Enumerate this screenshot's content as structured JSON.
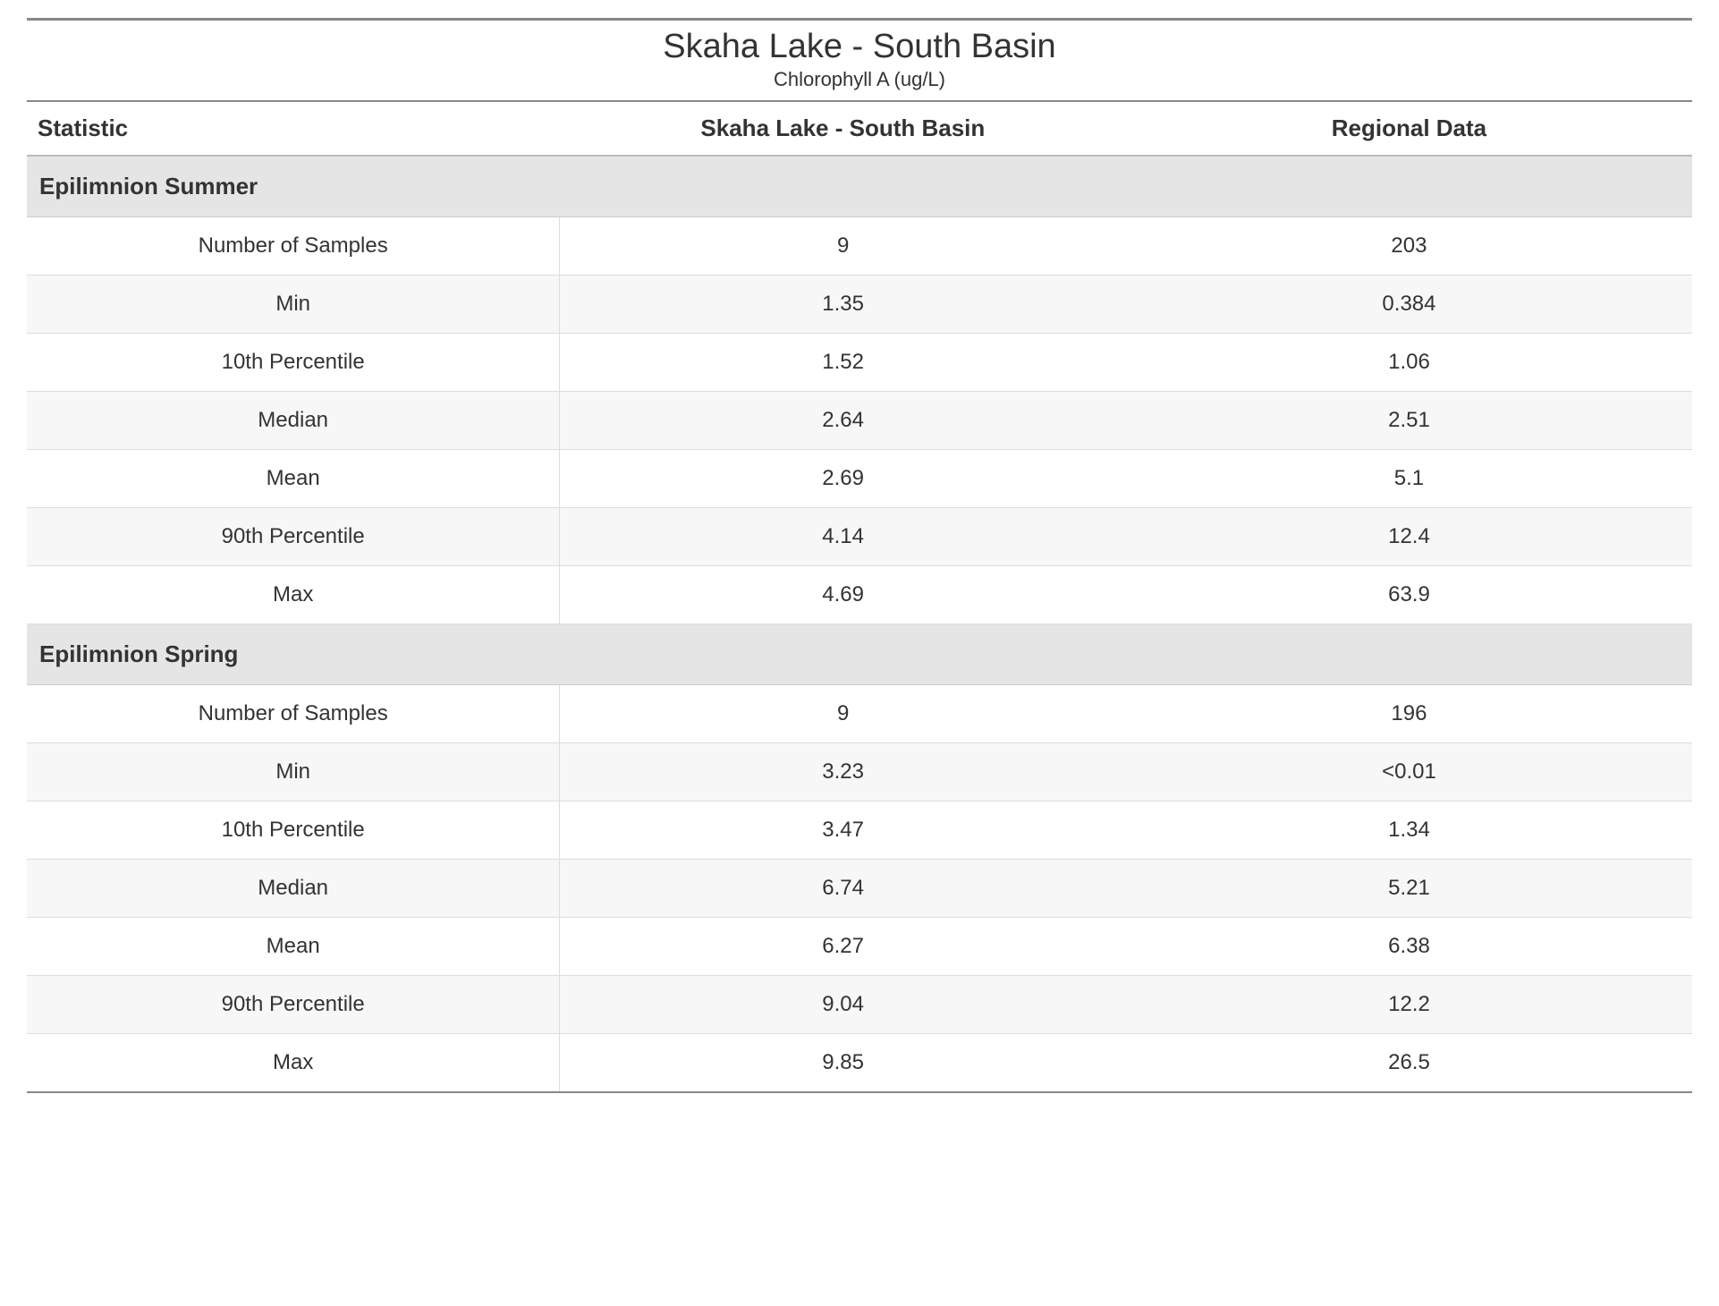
{
  "header": {
    "title": "Skaha Lake - South Basin",
    "subtitle": "Chlorophyll A (ug/L)"
  },
  "columns": {
    "stat": "Statistic",
    "site": "Skaha Lake - South Basin",
    "regional": "Regional Data"
  },
  "style": {
    "page_bg": "#ffffff",
    "text_color": "#333333",
    "top_rule_color": "#888888",
    "header_border_color": "#888888",
    "row_border_color": "#dddddd",
    "section_bg": "#e5e5e5",
    "alt_row_bg": "#f7f7f7",
    "title_fontsize": 38,
    "subtitle_fontsize": 22,
    "th_fontsize": 26,
    "section_fontsize": 26,
    "cell_fontsize": 24,
    "col_widths_pct": [
      32,
      34,
      34
    ]
  },
  "sections": [
    {
      "name": "Epilimnion Summer",
      "rows": [
        {
          "stat": "Number of Samples",
          "site": "9",
          "regional": "203"
        },
        {
          "stat": "Min",
          "site": "1.35",
          "regional": "0.384"
        },
        {
          "stat": "10th Percentile",
          "site": "1.52",
          "regional": "1.06"
        },
        {
          "stat": "Median",
          "site": "2.64",
          "regional": "2.51"
        },
        {
          "stat": "Mean",
          "site": "2.69",
          "regional": "5.1"
        },
        {
          "stat": "90th Percentile",
          "site": "4.14",
          "regional": "12.4"
        },
        {
          "stat": "Max",
          "site": "4.69",
          "regional": "63.9"
        }
      ]
    },
    {
      "name": "Epilimnion Spring",
      "rows": [
        {
          "stat": "Number of Samples",
          "site": "9",
          "regional": "196"
        },
        {
          "stat": "Min",
          "site": "3.23",
          "regional": "<0.01"
        },
        {
          "stat": "10th Percentile",
          "site": "3.47",
          "regional": "1.34"
        },
        {
          "stat": "Median",
          "site": "6.74",
          "regional": "5.21"
        },
        {
          "stat": "Mean",
          "site": "6.27",
          "regional": "6.38"
        },
        {
          "stat": "90th Percentile",
          "site": "9.04",
          "regional": "12.2"
        },
        {
          "stat": "Max",
          "site": "9.85",
          "regional": "26.5"
        }
      ]
    }
  ]
}
